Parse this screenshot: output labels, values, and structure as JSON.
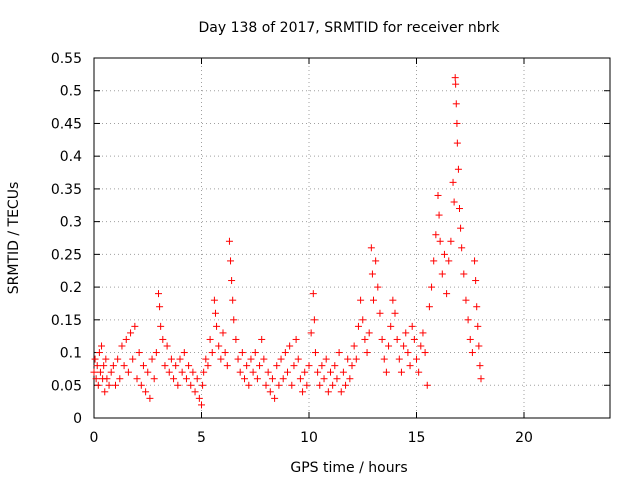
{
  "chart_data": {
    "type": "scatter",
    "title": "Day 138 of 2017, SRMTID for receiver nbrk",
    "xlabel": "GPS time / hours",
    "ylabel": "SRMTID / TECUs",
    "xlim": [
      0,
      24
    ],
    "ylim": [
      0,
      0.55
    ],
    "x_ticks": [
      0,
      5,
      10,
      15,
      20
    ],
    "y_ticks": [
      0,
      0.05,
      0.1,
      0.15,
      0.2,
      0.25,
      0.3,
      0.35,
      0.4,
      0.45,
      0.5,
      0.55
    ],
    "grid": true,
    "marker": "+",
    "color": "#ff0000",
    "points": [
      [
        0.0,
        0.07
      ],
      [
        0.05,
        0.09
      ],
      [
        0.1,
        0.06
      ],
      [
        0.15,
        0.08
      ],
      [
        0.2,
        0.05
      ],
      [
        0.25,
        0.1
      ],
      [
        0.3,
        0.07
      ],
      [
        0.35,
        0.11
      ],
      [
        0.4,
        0.06
      ],
      [
        0.45,
        0.08
      ],
      [
        0.5,
        0.04
      ],
      [
        0.55,
        0.09
      ],
      [
        0.6,
        0.06
      ],
      [
        0.7,
        0.05
      ],
      [
        0.8,
        0.07
      ],
      [
        0.9,
        0.08
      ],
      [
        1.0,
        0.05
      ],
      [
        1.1,
        0.09
      ],
      [
        1.2,
        0.06
      ],
      [
        1.3,
        0.11
      ],
      [
        1.4,
        0.08
      ],
      [
        1.5,
        0.12
      ],
      [
        1.6,
        0.07
      ],
      [
        1.7,
        0.13
      ],
      [
        1.8,
        0.09
      ],
      [
        1.9,
        0.14
      ],
      [
        2.0,
        0.06
      ],
      [
        2.1,
        0.1
      ],
      [
        2.2,
        0.05
      ],
      [
        2.3,
        0.08
      ],
      [
        2.4,
        0.04
      ],
      [
        2.5,
        0.07
      ],
      [
        2.6,
        0.03
      ],
      [
        2.7,
        0.09
      ],
      [
        2.8,
        0.06
      ],
      [
        2.9,
        0.1
      ],
      [
        3.0,
        0.19
      ],
      [
        3.05,
        0.17
      ],
      [
        3.1,
        0.14
      ],
      [
        3.2,
        0.12
      ],
      [
        3.3,
        0.08
      ],
      [
        3.4,
        0.11
      ],
      [
        3.5,
        0.07
      ],
      [
        3.6,
        0.09
      ],
      [
        3.7,
        0.06
      ],
      [
        3.8,
        0.08
      ],
      [
        3.9,
        0.05
      ],
      [
        4.0,
        0.09
      ],
      [
        4.1,
        0.07
      ],
      [
        4.2,
        0.1
      ],
      [
        4.3,
        0.06
      ],
      [
        4.4,
        0.08
      ],
      [
        4.5,
        0.05
      ],
      [
        4.6,
        0.07
      ],
      [
        4.7,
        0.04
      ],
      [
        4.8,
        0.06
      ],
      [
        4.9,
        0.03
      ],
      [
        5.0,
        0.02
      ],
      [
        5.05,
        0.05
      ],
      [
        5.1,
        0.07
      ],
      [
        5.2,
        0.09
      ],
      [
        5.3,
        0.08
      ],
      [
        5.4,
        0.12
      ],
      [
        5.5,
        0.1
      ],
      [
        5.6,
        0.18
      ],
      [
        5.65,
        0.16
      ],
      [
        5.7,
        0.14
      ],
      [
        5.8,
        0.11
      ],
      [
        5.9,
        0.09
      ],
      [
        6.0,
        0.13
      ],
      [
        6.1,
        0.1
      ],
      [
        6.2,
        0.08
      ],
      [
        6.3,
        0.27
      ],
      [
        6.35,
        0.24
      ],
      [
        6.4,
        0.21
      ],
      [
        6.45,
        0.18
      ],
      [
        6.5,
        0.15
      ],
      [
        6.6,
        0.12
      ],
      [
        6.7,
        0.09
      ],
      [
        6.8,
        0.07
      ],
      [
        6.9,
        0.1
      ],
      [
        7.0,
        0.06
      ],
      [
        7.1,
        0.08
      ],
      [
        7.2,
        0.05
      ],
      [
        7.3,
        0.09
      ],
      [
        7.4,
        0.07
      ],
      [
        7.5,
        0.1
      ],
      [
        7.6,
        0.06
      ],
      [
        7.7,
        0.08
      ],
      [
        7.8,
        0.12
      ],
      [
        7.9,
        0.09
      ],
      [
        8.0,
        0.05
      ],
      [
        8.1,
        0.07
      ],
      [
        8.2,
        0.04
      ],
      [
        8.3,
        0.06
      ],
      [
        8.4,
        0.03
      ],
      [
        8.5,
        0.08
      ],
      [
        8.6,
        0.05
      ],
      [
        8.7,
        0.09
      ],
      [
        8.8,
        0.06
      ],
      [
        8.9,
        0.1
      ],
      [
        9.0,
        0.07
      ],
      [
        9.1,
        0.11
      ],
      [
        9.2,
        0.05
      ],
      [
        9.3,
        0.08
      ],
      [
        9.4,
        0.12
      ],
      [
        9.5,
        0.09
      ],
      [
        9.6,
        0.06
      ],
      [
        9.7,
        0.04
      ],
      [
        9.8,
        0.07
      ],
      [
        9.9,
        0.05
      ],
      [
        10.0,
        0.08
      ],
      [
        10.1,
        0.13
      ],
      [
        10.2,
        0.19
      ],
      [
        10.25,
        0.15
      ],
      [
        10.3,
        0.1
      ],
      [
        10.4,
        0.07
      ],
      [
        10.5,
        0.05
      ],
      [
        10.6,
        0.08
      ],
      [
        10.7,
        0.06
      ],
      [
        10.8,
        0.09
      ],
      [
        10.9,
        0.04
      ],
      [
        11.0,
        0.07
      ],
      [
        11.1,
        0.05
      ],
      [
        11.2,
        0.08
      ],
      [
        11.3,
        0.06
      ],
      [
        11.4,
        0.1
      ],
      [
        11.5,
        0.04
      ],
      [
        11.6,
        0.07
      ],
      [
        11.7,
        0.05
      ],
      [
        11.8,
        0.09
      ],
      [
        11.9,
        0.06
      ],
      [
        12.0,
        0.08
      ],
      [
        12.1,
        0.11
      ],
      [
        12.2,
        0.09
      ],
      [
        12.3,
        0.14
      ],
      [
        12.4,
        0.18
      ],
      [
        12.5,
        0.15
      ],
      [
        12.6,
        0.12
      ],
      [
        12.7,
        0.1
      ],
      [
        12.8,
        0.13
      ],
      [
        12.9,
        0.26
      ],
      [
        12.95,
        0.22
      ],
      [
        13.0,
        0.18
      ],
      [
        13.1,
        0.24
      ],
      [
        13.2,
        0.2
      ],
      [
        13.3,
        0.16
      ],
      [
        13.4,
        0.12
      ],
      [
        13.5,
        0.09
      ],
      [
        13.6,
        0.07
      ],
      [
        13.7,
        0.11
      ],
      [
        13.8,
        0.14
      ],
      [
        13.9,
        0.18
      ],
      [
        14.0,
        0.16
      ],
      [
        14.1,
        0.12
      ],
      [
        14.2,
        0.09
      ],
      [
        14.3,
        0.07
      ],
      [
        14.4,
        0.11
      ],
      [
        14.5,
        0.13
      ],
      [
        14.6,
        0.1
      ],
      [
        14.7,
        0.08
      ],
      [
        14.8,
        0.14
      ],
      [
        14.9,
        0.12
      ],
      [
        15.0,
        0.09
      ],
      [
        15.1,
        0.07
      ],
      [
        15.2,
        0.11
      ],
      [
        15.3,
        0.13
      ],
      [
        15.4,
        0.1
      ],
      [
        15.5,
        0.05
      ],
      [
        15.6,
        0.17
      ],
      [
        15.7,
        0.2
      ],
      [
        15.8,
        0.24
      ],
      [
        15.9,
        0.28
      ],
      [
        16.0,
        0.34
      ],
      [
        16.05,
        0.31
      ],
      [
        16.1,
        0.27
      ],
      [
        16.2,
        0.22
      ],
      [
        16.3,
        0.25
      ],
      [
        16.4,
        0.19
      ],
      [
        16.5,
        0.24
      ],
      [
        16.6,
        0.27
      ],
      [
        16.7,
        0.36
      ],
      [
        16.75,
        0.33
      ],
      [
        16.8,
        0.52
      ],
      [
        16.82,
        0.51
      ],
      [
        16.85,
        0.48
      ],
      [
        16.88,
        0.45
      ],
      [
        16.9,
        0.42
      ],
      [
        16.95,
        0.38
      ],
      [
        17.0,
        0.32
      ],
      [
        17.05,
        0.29
      ],
      [
        17.1,
        0.26
      ],
      [
        17.2,
        0.22
      ],
      [
        17.3,
        0.18
      ],
      [
        17.4,
        0.15
      ],
      [
        17.5,
        0.12
      ],
      [
        17.6,
        0.1
      ],
      [
        17.7,
        0.24
      ],
      [
        17.75,
        0.21
      ],
      [
        17.8,
        0.17
      ],
      [
        17.85,
        0.14
      ],
      [
        17.9,
        0.11
      ],
      [
        17.95,
        0.08
      ],
      [
        18.0,
        0.06
      ]
    ]
  }
}
